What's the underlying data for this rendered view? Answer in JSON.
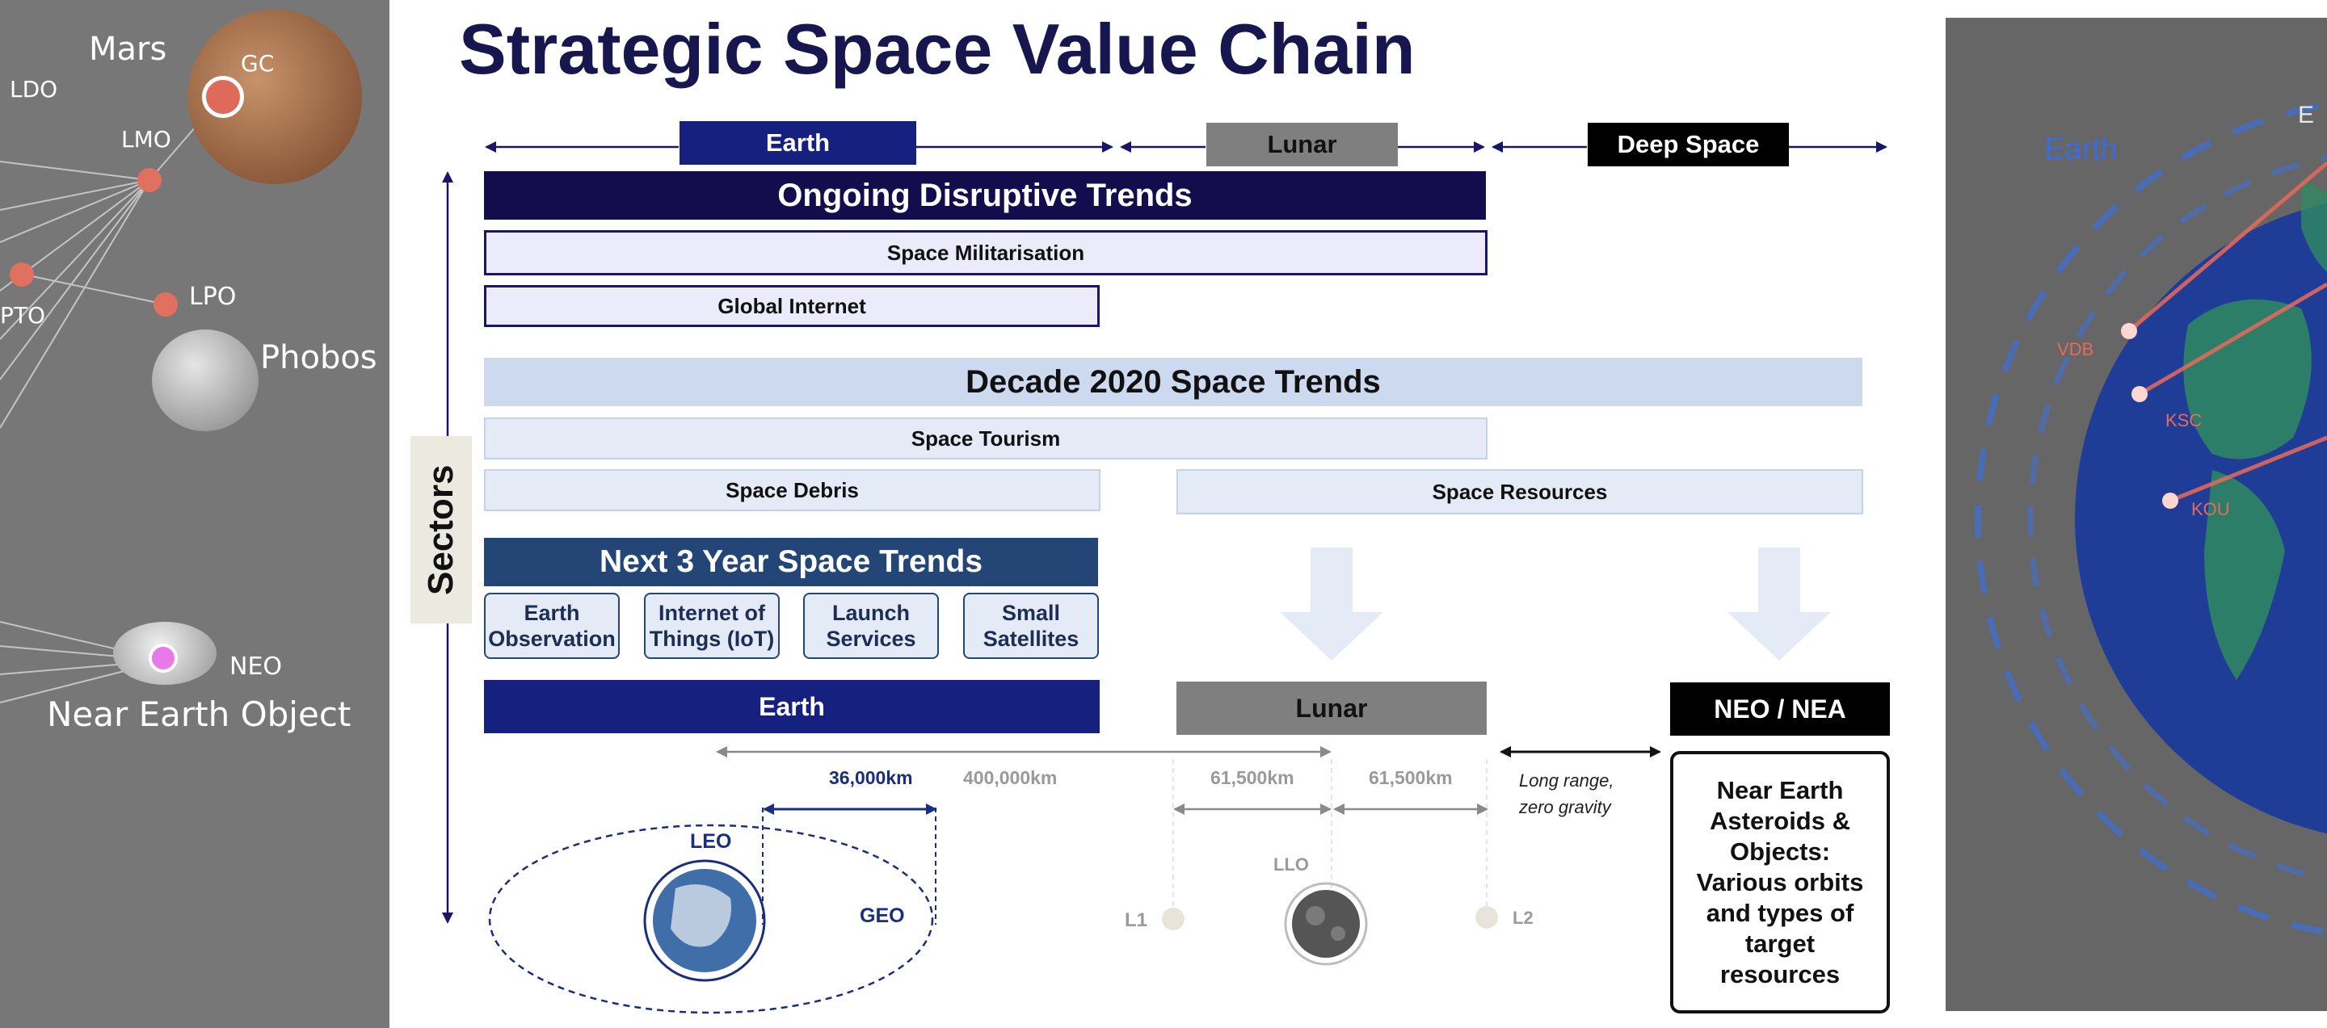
{
  "title": "Strategic Space Value Chain",
  "regions": {
    "earth": "Earth",
    "lunar": "Lunar",
    "deep_space": "Deep Space"
  },
  "sectors_label": "Sectors",
  "ongoing": {
    "heading": "Ongoing Disruptive Trends",
    "items": [
      "Space Militarisation",
      "Global Internet"
    ]
  },
  "decade": {
    "heading": "Decade 2020 Space Trends",
    "items": [
      "Space Tourism",
      "Space Debris",
      "Space Resources"
    ]
  },
  "next3": {
    "heading": "Next 3 Year Space Trends",
    "tiles": [
      "Earth Observation",
      "Internet of Things (IoT)",
      "Launch Services",
      "Small Satellites"
    ]
  },
  "sectors": {
    "earth": "Earth",
    "lunar": "Lunar",
    "neo": "NEO / NEA"
  },
  "distances": {
    "geo_km": "36,000km",
    "moon_km": "400,000km",
    "l1_km": "61,500km",
    "l2_km": "61,500km"
  },
  "orbit_labels": {
    "leo": "LEO",
    "geo": "GEO",
    "llo": "LLO",
    "l1": "L1",
    "l2": "L2"
  },
  "deep_note": "Long range, zero gravity",
  "neo_description": "Near Earth Asteroids & Objects: Various orbits and types of target resources",
  "left_panel": {
    "labels": {
      "mars": "Mars",
      "gc": "GC",
      "ldo": "LDO",
      "lmo": "LMO",
      "pto": "PTO",
      "lpo": "LPO",
      "phobos": "Phobos",
      "neo": "NEO",
      "near_earth_object": "Near Earth Object"
    }
  },
  "right_panel": {
    "labels": {
      "earth": "Earth",
      "e": "E",
      "vdb": "VDB",
      "ksc": "KSC",
      "kou": "KOU"
    }
  },
  "colors": {
    "title": "#17164f",
    "earth": "#16217f",
    "lunar": "#7f7f7f",
    "deep": "#000000",
    "ongoing": "#130d4e",
    "decade": "#ccd9ee",
    "next3": "#234676"
  }
}
